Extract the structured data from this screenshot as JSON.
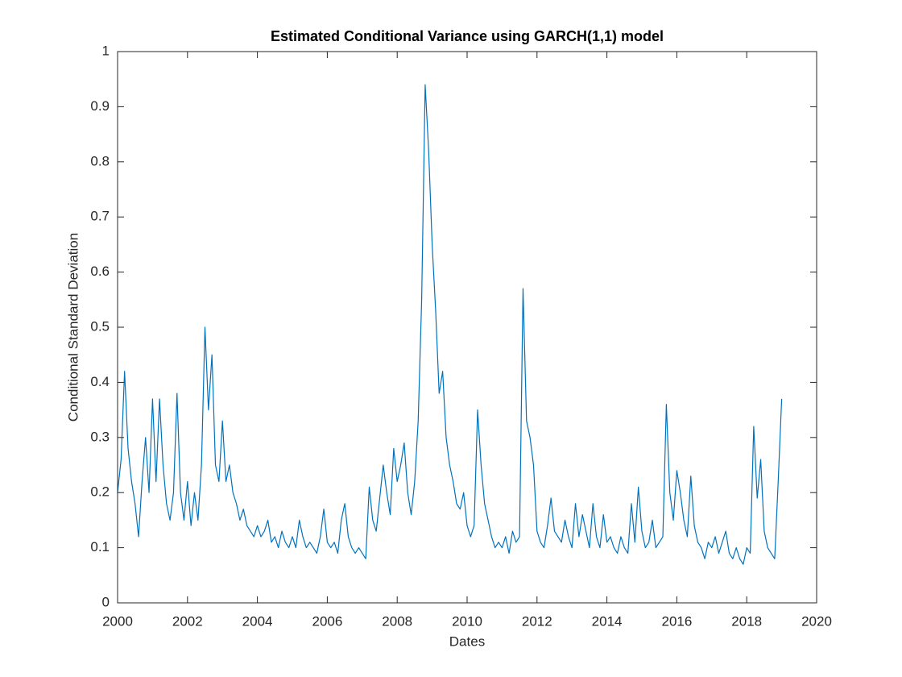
{
  "chart_data": {
    "type": "line",
    "title": "Estimated Conditional Variance using GARCH(1,1) model",
    "xlabel": "Dates",
    "ylabel": "Conditional Standard Deviation",
    "xlim": [
      2000,
      2020
    ],
    "xticks": [
      2000,
      2002,
      2004,
      2006,
      2008,
      2010,
      2012,
      2014,
      2016,
      2018,
      2020
    ],
    "ylim": [
      0,
      1
    ],
    "yticks": [
      0,
      0.1,
      0.2,
      0.3,
      0.4,
      0.5,
      0.6,
      0.7,
      0.8,
      0.9,
      1
    ],
    "grid": false,
    "x": [
      2000,
      2000.1,
      2000.2,
      2000.3,
      2000.4,
      2000.5,
      2000.6,
      2000.7,
      2000.8,
      2000.9,
      2001,
      2001.1,
      2001.2,
      2001.3,
      2001.4,
      2001.5,
      2001.6,
      2001.7,
      2001.8,
      2001.9,
      2002,
      2002.1,
      2002.2,
      2002.3,
      2002.4,
      2002.5,
      2002.6,
      2002.7,
      2002.8,
      2002.9,
      2003,
      2003.1,
      2003.2,
      2003.3,
      2003.4,
      2003.5,
      2003.6,
      2003.7,
      2003.8,
      2003.9,
      2004,
      2004.1,
      2004.2,
      2004.3,
      2004.4,
      2004.5,
      2004.6,
      2004.7,
      2004.8,
      2004.9,
      2005,
      2005.1,
      2005.2,
      2005.3,
      2005.4,
      2005.5,
      2005.6,
      2005.7,
      2005.8,
      2005.9,
      2006,
      2006.1,
      2006.2,
      2006.3,
      2006.4,
      2006.5,
      2006.6,
      2006.7,
      2006.8,
      2006.9,
      2007,
      2007.1,
      2007.2,
      2007.3,
      2007.4,
      2007.5,
      2007.6,
      2007.7,
      2007.8,
      2007.9,
      2008,
      2008.1,
      2008.2,
      2008.3,
      2008.4,
      2008.5,
      2008.6,
      2008.7,
      2008.8,
      2008.9,
      2009,
      2009.1,
      2009.2,
      2009.3,
      2009.4,
      2009.5,
      2009.6,
      2009.7,
      2009.8,
      2009.9,
      2010,
      2010.1,
      2010.2,
      2010.3,
      2010.4,
      2010.5,
      2010.6,
      2010.7,
      2010.8,
      2010.9,
      2011,
      2011.1,
      2011.2,
      2011.3,
      2011.4,
      2011.5,
      2011.6,
      2011.7,
      2011.8,
      2011.9,
      2012,
      2012.1,
      2012.2,
      2012.3,
      2012.4,
      2012.5,
      2012.6,
      2012.7,
      2012.8,
      2012.9,
      2013,
      2013.1,
      2013.2,
      2013.3,
      2013.4,
      2013.5,
      2013.6,
      2013.7,
      2013.8,
      2013.9,
      2014,
      2014.1,
      2014.2,
      2014.3,
      2014.4,
      2014.5,
      2014.6,
      2014.7,
      2014.8,
      2014.9,
      2015,
      2015.1,
      2015.2,
      2015.3,
      2015.4,
      2015.5,
      2015.6,
      2015.7,
      2015.8,
      2015.9,
      2016,
      2016.1,
      2016.2,
      2016.3,
      2016.4,
      2016.5,
      2016.6,
      2016.7,
      2016.8,
      2016.9,
      2017,
      2017.1,
      2017.2,
      2017.3,
      2017.4,
      2017.5,
      2017.6,
      2017.7,
      2017.8,
      2017.9,
      2018,
      2018.1,
      2018.2,
      2018.3,
      2018.4,
      2018.5,
      2018.6,
      2018.7,
      2018.8,
      2018.9,
      2019
    ],
    "series": [
      {
        "color": "#0072bd",
        "values": [
          0.2,
          0.26,
          0.42,
          0.28,
          0.22,
          0.18,
          0.12,
          0.22,
          0.3,
          0.2,
          0.37,
          0.22,
          0.37,
          0.25,
          0.18,
          0.15,
          0.2,
          0.38,
          0.2,
          0.15,
          0.22,
          0.14,
          0.2,
          0.15,
          0.25,
          0.5,
          0.35,
          0.45,
          0.25,
          0.22,
          0.33,
          0.22,
          0.25,
          0.2,
          0.18,
          0.15,
          0.17,
          0.14,
          0.13,
          0.12,
          0.14,
          0.12,
          0.13,
          0.15,
          0.11,
          0.12,
          0.1,
          0.13,
          0.11,
          0.1,
          0.12,
          0.1,
          0.15,
          0.12,
          0.1,
          0.11,
          0.1,
          0.09,
          0.12,
          0.17,
          0.11,
          0.1,
          0.11,
          0.09,
          0.15,
          0.18,
          0.12,
          0.1,
          0.09,
          0.1,
          0.09,
          0.08,
          0.21,
          0.15,
          0.13,
          0.19,
          0.25,
          0.2,
          0.16,
          0.28,
          0.22,
          0.25,
          0.29,
          0.2,
          0.16,
          0.22,
          0.33,
          0.55,
          0.94,
          0.82,
          0.65,
          0.53,
          0.38,
          0.42,
          0.3,
          0.25,
          0.22,
          0.18,
          0.17,
          0.2,
          0.14,
          0.12,
          0.14,
          0.35,
          0.25,
          0.18,
          0.15,
          0.12,
          0.1,
          0.11,
          0.1,
          0.12,
          0.09,
          0.13,
          0.11,
          0.12,
          0.57,
          0.33,
          0.3,
          0.25,
          0.13,
          0.11,
          0.1,
          0.14,
          0.19,
          0.13,
          0.12,
          0.11,
          0.15,
          0.12,
          0.1,
          0.18,
          0.12,
          0.16,
          0.13,
          0.1,
          0.18,
          0.12,
          0.1,
          0.16,
          0.11,
          0.12,
          0.1,
          0.09,
          0.12,
          0.1,
          0.09,
          0.18,
          0.11,
          0.21,
          0.13,
          0.1,
          0.11,
          0.15,
          0.1,
          0.11,
          0.12,
          0.36,
          0.2,
          0.15,
          0.24,
          0.2,
          0.15,
          0.12,
          0.23,
          0.14,
          0.11,
          0.1,
          0.08,
          0.11,
          0.1,
          0.12,
          0.09,
          0.11,
          0.13,
          0.09,
          0.08,
          0.1,
          0.08,
          0.07,
          0.1,
          0.09,
          0.32,
          0.19,
          0.26,
          0.13,
          0.1,
          0.09,
          0.08,
          0.22,
          0.37
        ]
      }
    ]
  }
}
